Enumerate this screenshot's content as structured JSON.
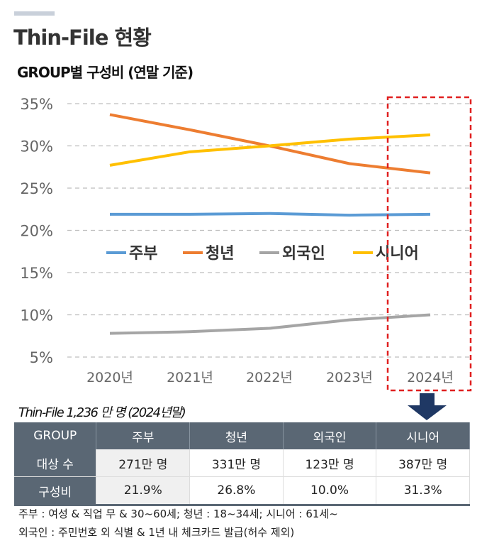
{
  "header": {
    "title": "Thin-File 현황",
    "subtitle": "GROUP별 구성비 (연말 기준)"
  },
  "chart_data": {
    "type": "line",
    "title": "",
    "categories": [
      "2020년",
      "2021년",
      "2022년",
      "2023년",
      "2024년"
    ],
    "ylim": [
      5,
      35
    ],
    "yticks": [
      "5%",
      "10%",
      "15%",
      "20%",
      "25%",
      "30%",
      "35%"
    ],
    "grid": true,
    "legend_placement": "center",
    "highlight": "2024년",
    "series": [
      {
        "name": "주부",
        "color": "#5b9bd5",
        "values": [
          21.9,
          21.9,
          22.0,
          21.8,
          21.9
        ]
      },
      {
        "name": "청년",
        "color": "#ed7d31",
        "values": [
          33.7,
          31.9,
          30.0,
          27.9,
          26.8
        ]
      },
      {
        "name": "외국인",
        "color": "#a5a5a5",
        "values": [
          7.8,
          8.0,
          8.4,
          9.4,
          10.0
        ]
      },
      {
        "name": "시니어",
        "color": "#ffc000",
        "values": [
          27.7,
          29.3,
          30.0,
          30.8,
          31.3
        ]
      }
    ]
  },
  "table": {
    "caption": "Thin-File 1,236 만 명 (2024년말)",
    "headers": [
      "GROUP",
      "주부",
      "청년",
      "외국인",
      "시니어"
    ],
    "rows": [
      [
        "대상 수",
        "271만 명",
        "331만 명",
        "123만 명",
        "387만 명"
      ],
      [
        "구성비",
        "21.9%",
        "26.8%",
        "10.0%",
        "31.3%"
      ]
    ]
  },
  "notes": [
    "주부 : 여성 & 직업 무 & 30~60세;    청년 : 18~34세;    시니어 : 61세~",
    "외국인 : 주민번호 외 식별 & 1년 내 체크카드 발급(허수 제외)"
  ]
}
